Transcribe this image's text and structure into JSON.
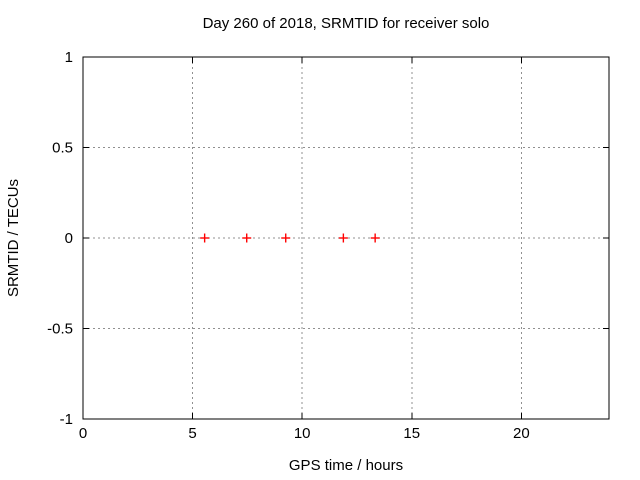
{
  "chart_data": {
    "type": "scatter",
    "title": "Day 260 of 2018, SRMTID for receiver solo",
    "xlabel": "GPS time / hours",
    "ylabel": "SRMTID / TECUs",
    "xlim": [
      0,
      24
    ],
    "ylim": [
      -1,
      1
    ],
    "xticks": [
      0,
      5,
      10,
      15,
      20
    ],
    "xtick_labels": [
      "0",
      "5",
      "10",
      "15",
      "20"
    ],
    "yticks": [
      1,
      0.5,
      0,
      -0.5,
      -1
    ],
    "ytick_labels": [
      "1",
      "0.5",
      "0",
      "-0.5",
      "-1"
    ],
    "grid": true,
    "legend_position": "none",
    "marker": "plus",
    "colors": {
      "marker": "#ff0000",
      "grid": "#909090",
      "axis": "#000000",
      "background": "#ffffff"
    },
    "series": [
      {
        "name": "SRMTID",
        "x": [
          5.55,
          7.47,
          9.25,
          11.88,
          13.33
        ],
        "y": [
          0,
          0,
          0,
          0,
          0
        ]
      }
    ]
  }
}
